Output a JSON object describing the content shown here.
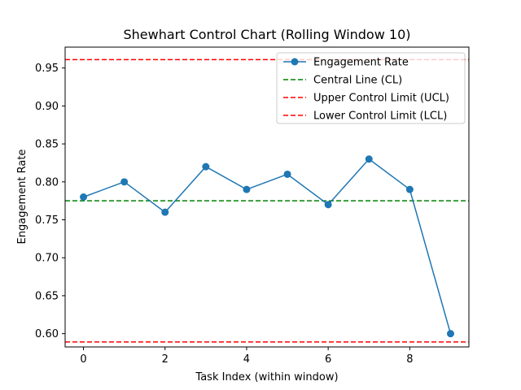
{
  "chart_data": {
    "type": "line",
    "title": "Shewhart Control Chart (Rolling Window 10)",
    "xlabel": "Task Index (within window)",
    "ylabel": "Engagement Rate",
    "xlim": [
      -0.45,
      9.45
    ],
    "ylim": [
      0.5825,
      0.9775
    ],
    "x_ticks": [
      0,
      2,
      4,
      6,
      8
    ],
    "x_tick_labels": [
      "0",
      "2",
      "4",
      "6",
      "8"
    ],
    "y_ticks": [
      0.6,
      0.65,
      0.7,
      0.75,
      0.8,
      0.85,
      0.9,
      0.95
    ],
    "y_tick_labels": [
      "0.60",
      "0.65",
      "0.70",
      "0.75",
      "0.80",
      "0.85",
      "0.90",
      "0.95"
    ],
    "grid": false,
    "legend_position": "top-right",
    "series": [
      {
        "name": "Engagement Rate",
        "color": "#1f77b4",
        "x": [
          0,
          1,
          2,
          3,
          4,
          5,
          6,
          7,
          8,
          9
        ],
        "y": [
          0.78,
          0.8,
          0.76,
          0.82,
          0.79,
          0.81,
          0.77,
          0.83,
          0.79,
          0.6
        ]
      }
    ],
    "reference_lines": [
      {
        "name": "Central Line (CL)",
        "y": 0.775,
        "color": "#008000"
      },
      {
        "name": "Upper Control Limit (UCL)",
        "y": 0.961,
        "color": "#ff0000"
      },
      {
        "name": "Lower Control Limit (LCL)",
        "y": 0.589,
        "color": "#ff0000"
      }
    ]
  }
}
